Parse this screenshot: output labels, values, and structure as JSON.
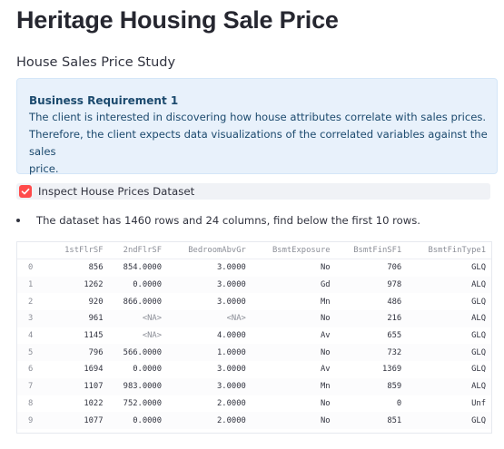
{
  "page": {
    "title": "Heritage Housing Sale Price",
    "subtitle": "House Sales Price Study"
  },
  "info_box": {
    "title": "Business Requirement 1",
    "line1": "The client is interested in discovering how house attributes correlate with sales prices.",
    "line2": "Therefore, the client expects data visualizations of the correlated variables against the sales",
    "line3": "price."
  },
  "checkbox": {
    "label": "Inspect House Prices Dataset",
    "checked": true,
    "accent_color": "#ff4b4b"
  },
  "summary": {
    "text": "The dataset has 1460 rows and 24 columns, find below the first 10 rows."
  },
  "table": {
    "columns": [
      "1stFlrSF",
      "2ndFlrSF",
      "BedroomAbvGr",
      "BsmtExposure",
      "BsmtFinSF1",
      "BsmtFinType1"
    ],
    "rows": [
      {
        "index": "0",
        "cells": [
          "856",
          "854.0000",
          "3.0000",
          "No",
          "706",
          "GLQ"
        ]
      },
      {
        "index": "1",
        "cells": [
          "1262",
          "0.0000",
          "3.0000",
          "Gd",
          "978",
          "ALQ"
        ]
      },
      {
        "index": "2",
        "cells": [
          "920",
          "866.0000",
          "3.0000",
          "Mn",
          "486",
          "GLQ"
        ]
      },
      {
        "index": "3",
        "cells": [
          "961",
          "<NA>",
          "<NA>",
          "No",
          "216",
          "ALQ"
        ]
      },
      {
        "index": "4",
        "cells": [
          "1145",
          "<NA>",
          "4.0000",
          "Av",
          "655",
          "GLQ"
        ]
      },
      {
        "index": "5",
        "cells": [
          "796",
          "566.0000",
          "1.0000",
          "No",
          "732",
          "GLQ"
        ]
      },
      {
        "index": "6",
        "cells": [
          "1694",
          "0.0000",
          "3.0000",
          "Av",
          "1369",
          "GLQ"
        ]
      },
      {
        "index": "7",
        "cells": [
          "1107",
          "983.0000",
          "3.0000",
          "Mn",
          "859",
          "ALQ"
        ]
      },
      {
        "index": "8",
        "cells": [
          "1022",
          "752.0000",
          "2.0000",
          "No",
          "0",
          "Unf"
        ]
      },
      {
        "index": "9",
        "cells": [
          "1077",
          "0.0000",
          "2.0000",
          "No",
          "851",
          "GLQ"
        ]
      }
    ]
  }
}
